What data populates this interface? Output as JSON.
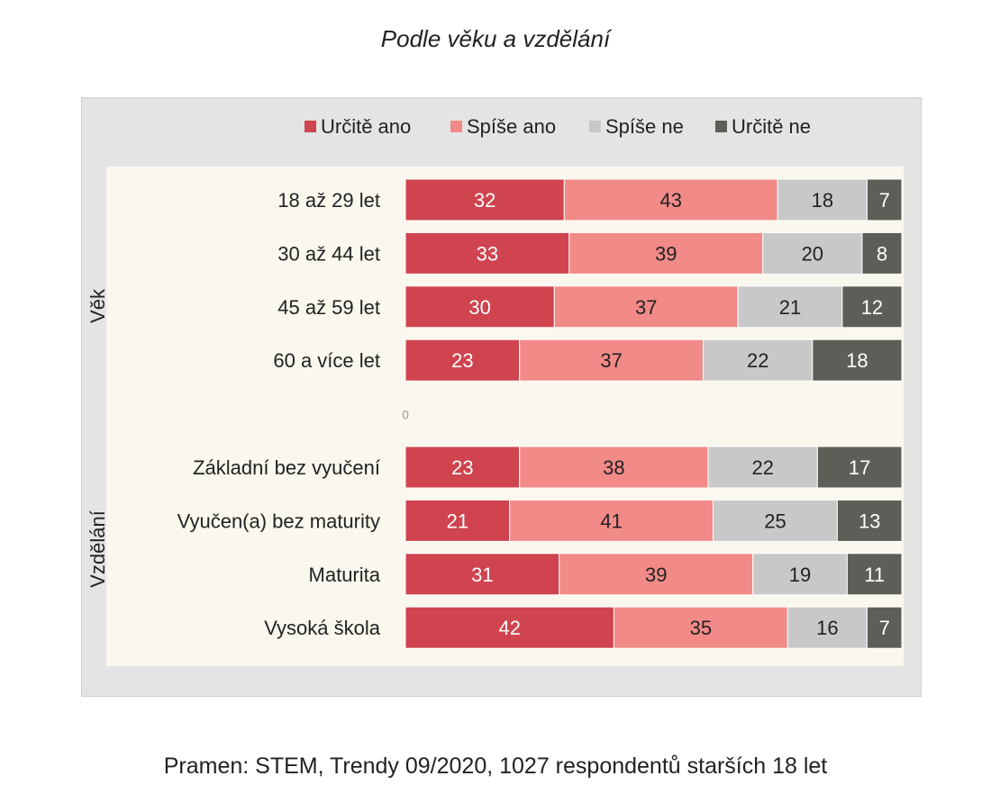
{
  "title": "Podle věku a vzdělání",
  "source": "Pramen: STEM, Trendy 09/2020, 1027 respondentů starších 18 let",
  "chart_data": {
    "type": "bar",
    "orientation": "horizontal",
    "stacked": true,
    "legend_position": "top",
    "categories": [
      "18 až 29 let",
      "30 až 44 let",
      "45 až 59 let",
      "60 a více let",
      "0",
      "Základní bez vyučení",
      "Vyučen(a) bez maturity",
      "Maturita",
      "Vysoká škola"
    ],
    "groups": [
      {
        "label": "Věk",
        "categories": [
          "18 až 29 let",
          "30 až 44 let",
          "45 až 59 let",
          "60 a více let"
        ]
      },
      {
        "label": "Vzdělání",
        "categories": [
          "Základní bez vyučení",
          "Vyučen(a) bez maturity",
          "Maturita",
          "Vysoká škola"
        ]
      }
    ],
    "series": [
      {
        "name": "Určitě ano",
        "color": "#cf444e",
        "label_color": "#ffffff",
        "values": [
          32,
          33,
          30,
          23,
          null,
          23,
          21,
          31,
          42
        ]
      },
      {
        "name": "Spíše ano",
        "color": "#f28a88",
        "label_color": "#222222",
        "values": [
          43,
          39,
          37,
          37,
          null,
          38,
          41,
          39,
          35
        ]
      },
      {
        "name": "Spíše ne",
        "color": "#c8c8c8",
        "label_color": "#222222",
        "values": [
          18,
          20,
          21,
          22,
          null,
          22,
          25,
          19,
          16
        ]
      },
      {
        "name": "Určitě ne",
        "color": "#5e5e58",
        "label_color": "#ffffff",
        "values": [
          7,
          8,
          12,
          18,
          null,
          17,
          13,
          11,
          7
        ]
      }
    ],
    "xlim": [
      0,
      100
    ]
  }
}
